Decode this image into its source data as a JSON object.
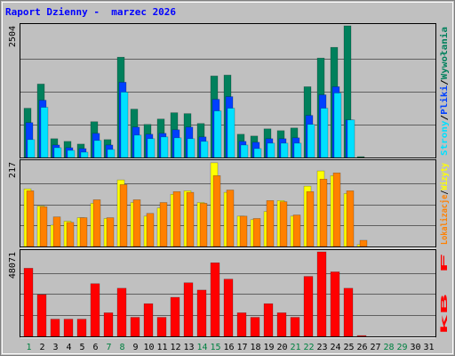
{
  "chart_data": {
    "type": "bar",
    "title": "Raport Dzienny -  marzec 2026",
    "categories": [
      "1",
      "2",
      "3",
      "4",
      "5",
      "6",
      "7",
      "8",
      "9",
      "10",
      "11",
      "12",
      "13",
      "14",
      "15",
      "16",
      "17",
      "18",
      "19",
      "20",
      "21",
      "22",
      "23",
      "24",
      "25",
      "26",
      "27",
      "28",
      "29",
      "30",
      "31"
    ],
    "category_colors": [
      "#008040",
      "#000000",
      "#000000",
      "#000000",
      "#000000",
      "#000000",
      "#008040",
      "#008040",
      "#000000",
      "#000000",
      "#000000",
      "#000000",
      "#000000",
      "#008040",
      "#008040",
      "#000000",
      "#000000",
      "#000000",
      "#000000",
      "#000000",
      "#008040",
      "#008040",
      "#000000",
      "#000000",
      "#000000",
      "#000000",
      "#000000",
      "#008040",
      "#008040",
      "#000000",
      "#000000"
    ],
    "legend_separator": "/",
    "panels": [
      {
        "ylim": [
          0,
          2504
        ],
        "yticks": [
          2504
        ],
        "grid": [
          626,
          1252,
          1878
        ],
        "series": [
          {
            "name": "Wywołania",
            "color": "#00805c",
            "values": [
              937,
              1397,
              358,
              307,
              256,
              681,
              341,
              1908,
              920,
              630,
              732,
              852,
              835,
              647,
              1550,
              1567,
              443,
              409,
              545,
              511,
              562,
              1346,
              1891,
              2095,
              2504,
              17,
              0,
              0,
              0,
              0,
              0
            ]
          },
          {
            "name": "Pliki",
            "color": "#0040ff",
            "values": [
              664,
              1090,
              238,
              187,
              170,
              460,
              238,
              1431,
              579,
              443,
              460,
              528,
              579,
              392,
              1107,
              1158,
              307,
              290,
              358,
              358,
              375,
              801,
              1192,
              1346,
              715,
              0,
              0,
              0,
              0,
              0,
              0
            ]
          },
          {
            "name": "Strony",
            "color": "#00e0ff",
            "values": [
              341,
              954,
              187,
              136,
              102,
              324,
              153,
              1243,
              426,
              358,
              392,
              375,
              358,
              307,
              886,
              937,
              238,
              170,
              273,
              273,
              273,
              630,
              937,
              1227,
              715,
              0,
              0,
              0,
              0,
              0,
              0
            ]
          }
        ]
      },
      {
        "ylim": [
          0,
          217
        ],
        "yticks": [
          217
        ],
        "grid": [
          54.25,
          108.5,
          162.75
        ],
        "series": [
          {
            "name": "Wizyty",
            "color": "#ffff00",
            "values": [
              148,
              104,
              55,
              65,
              74,
              111,
              72,
              171,
              113,
              78,
              99,
              134,
              143,
              113,
              215,
              139,
              78,
              69,
              90,
              118,
              78,
              155,
              194,
              182,
              136,
              5,
              0,
              0,
              0,
              0,
              0
            ]
          },
          {
            "name": "Lokalizacje",
            "color": "#ff8000",
            "values": [
              143,
              102,
              76,
              62,
              74,
              120,
              74,
              159,
              120,
              85,
              113,
              141,
              139,
              111,
              182,
              145,
              78,
              72,
              118,
              115,
              81,
              141,
              173,
              189,
              143,
              16,
              0,
              0,
              0,
              0,
              0
            ]
          }
        ]
      },
      {
        "ylim": [
          0,
          48071
        ],
        "yticks": [
          48071
        ],
        "grid": [
          12018,
          24036,
          36053
        ],
        "series": [
          {
            "name": "kB F",
            "color": "#ff0000",
            "values": [
              38767,
              23782,
              9823,
              9823,
              9823,
              29986,
              13442,
              27401,
              10857,
              18612,
              10857,
              22231,
              30503,
              26367,
              41877,
              32571,
              13442,
              10857,
              18612,
              13442,
              10857,
              34122,
              48071,
              36707,
              27401,
              500,
              0,
              0,
              0,
              0,
              0
            ]
          }
        ]
      }
    ]
  }
}
